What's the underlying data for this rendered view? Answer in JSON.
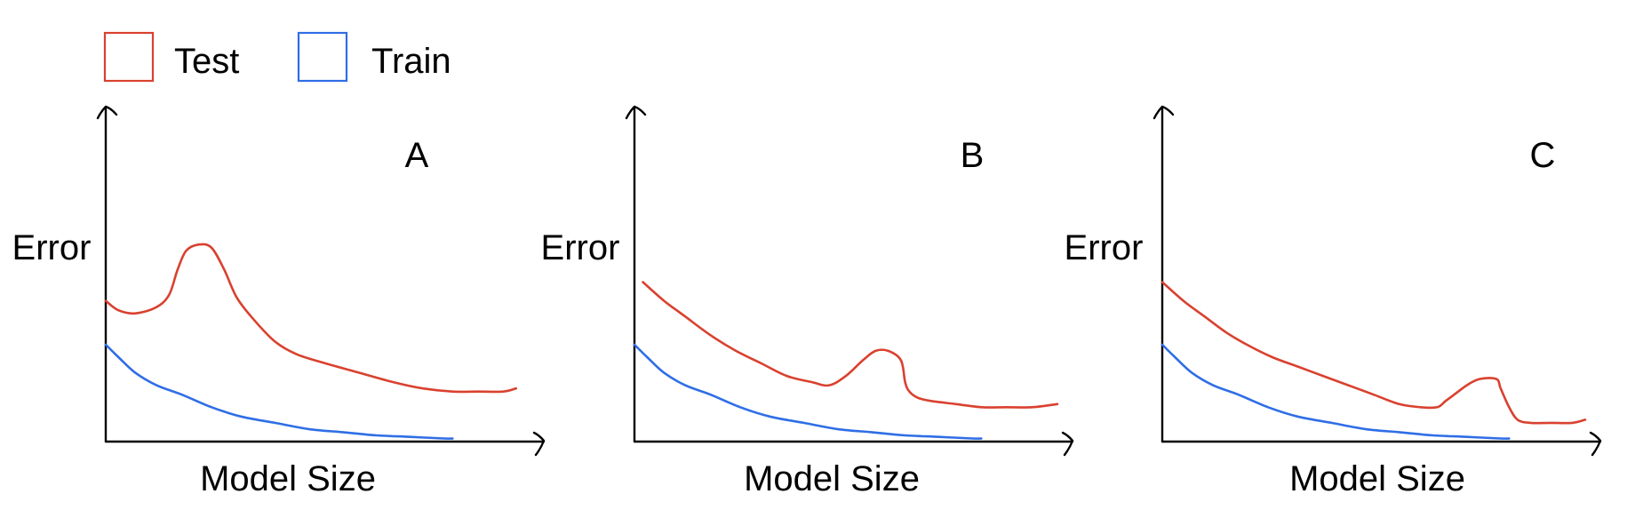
{
  "colors": {
    "test": "#d9412f",
    "train": "#2f6ee6",
    "axis": "#000000"
  },
  "legend": {
    "placement": "top-left",
    "entries": [
      {
        "label": "Test",
        "color": "#d9412f"
      },
      {
        "label": "Train",
        "color": "#2f6ee6"
      }
    ]
  },
  "chart_data": [
    {
      "type": "line",
      "title": "A",
      "xlabel": "Model Size",
      "ylabel": "Error",
      "xlim": [
        0,
        100
      ],
      "ylim": [
        0,
        100
      ],
      "grid": false,
      "series": [
        {
          "name": "Test",
          "x": [
            0,
            3,
            7,
            12,
            15,
            17,
            19,
            22,
            25,
            28,
            31,
            35,
            40,
            45,
            52,
            60,
            68,
            75,
            82,
            88,
            94,
            97
          ],
          "y": [
            45,
            42,
            41,
            43,
            47,
            55,
            61,
            63,
            62,
            55,
            46,
            39,
            32,
            28,
            25,
            22,
            19,
            17,
            16,
            16,
            16,
            17
          ]
        },
        {
          "name": "Train",
          "x": [
            0,
            3,
            7,
            12,
            18,
            25,
            32,
            40,
            48,
            56,
            64,
            72,
            80,
            82
          ],
          "y": [
            31,
            27,
            22,
            18,
            15,
            11,
            8,
            6,
            4,
            3,
            2,
            1.5,
            1,
            1
          ]
        }
      ]
    },
    {
      "type": "line",
      "title": "B",
      "xlabel": "Model Size",
      "ylabel": "Error",
      "xlim": [
        0,
        100
      ],
      "ylim": [
        0,
        100
      ],
      "grid": false,
      "series": [
        {
          "name": "Test",
          "x": [
            2,
            7,
            12,
            18,
            24,
            30,
            36,
            42,
            46,
            50,
            54,
            57,
            60,
            63,
            64,
            65,
            67,
            70,
            76,
            82,
            88,
            94,
            100
          ],
          "y": [
            51,
            45,
            40,
            34,
            29,
            25,
            21,
            19,
            18,
            21,
            26,
            29,
            29,
            26,
            19,
            16,
            14,
            13,
            12,
            11,
            11,
            11,
            12
          ]
        },
        {
          "name": "Train",
          "x": [
            0,
            3,
            7,
            12,
            18,
            25,
            32,
            40,
            48,
            56,
            64,
            72,
            80,
            82
          ],
          "y": [
            31,
            27,
            22,
            18,
            15,
            11,
            8,
            6,
            4,
            3,
            2,
            1.5,
            1,
            1
          ]
        }
      ]
    },
    {
      "type": "line",
      "title": "C",
      "xlabel": "Model Size",
      "ylabel": "Error",
      "xlim": [
        0,
        100
      ],
      "ylim": [
        0,
        100
      ],
      "grid": false,
      "series": [
        {
          "name": "Test",
          "x": [
            0,
            5,
            10,
            15,
            20,
            26,
            32,
            38,
            44,
            50,
            56,
            61,
            65,
            67,
            69,
            72,
            75,
            79,
            80,
            82,
            84,
            87,
            92,
            97,
            100
          ],
          "y": [
            51,
            45,
            40,
            35,
            31,
            27,
            24,
            21,
            18,
            15,
            12,
            11,
            11,
            13,
            15,
            18,
            20,
            20,
            17,
            11,
            7,
            6,
            6,
            6,
            7
          ]
        },
        {
          "name": "Train",
          "x": [
            0,
            3,
            7,
            12,
            18,
            25,
            32,
            40,
            48,
            56,
            64,
            72,
            80,
            82
          ],
          "y": [
            31,
            27,
            22,
            18,
            15,
            11,
            8,
            6,
            4,
            3,
            2,
            1.5,
            1,
            1
          ]
        }
      ]
    }
  ]
}
